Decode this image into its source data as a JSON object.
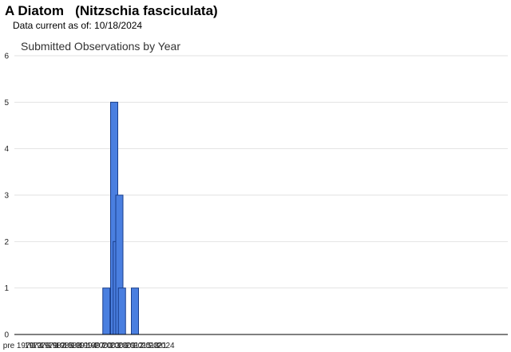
{
  "header": {
    "title": "A Diatom   (Nitzschia fasciculata)",
    "data_current": "Data current as of: 10/18/2024"
  },
  "colors": {
    "bar_fill": "#4a7fe0",
    "bar_stroke": "#1a3f8c",
    "grid": "#e2e2e2",
    "axis": "#000000"
  },
  "chart_data": {
    "type": "bar",
    "title": "Submitted Observations by Year",
    "xlabel": "",
    "ylabel": "",
    "ylim": [
      0,
      6
    ],
    "yticks": [
      0,
      1,
      2,
      3,
      4,
      5,
      6
    ],
    "grid": true,
    "legend": "none",
    "x_tick_labels": [
      "pre",
      "1970",
      "1973",
      "1976",
      "1979",
      "1982",
      "1985",
      "1988",
      "1991",
      "1994",
      "1997",
      "2000",
      "2003",
      "2006",
      "2009",
      "2012",
      "2015",
      "2018",
      "2021",
      "2024"
    ],
    "categories": [
      "2001",
      "2004",
      "2005",
      "2006",
      "2007",
      "2012"
    ],
    "values": [
      1,
      5,
      2,
      3,
      1,
      1
    ]
  }
}
